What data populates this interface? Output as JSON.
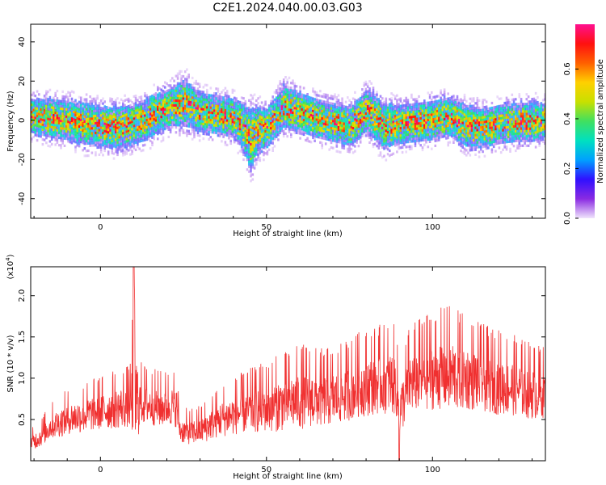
{
  "title": "C2E1.2024.040.00.03.G03",
  "chart_data": [
    {
      "type": "heatmap",
      "xlabel": "Height of straight line (km)",
      "ylabel": "Frequency (Hz)",
      "xlim": [
        -21,
        134
      ],
      "ylim": [
        -50,
        49
      ],
      "xticks": [
        0,
        50,
        100
      ],
      "yticks": [
        -40,
        -20,
        0,
        20,
        40
      ],
      "colorbar": {
        "label": "Normalized spectral amplitude",
        "range": [
          0.0,
          0.78
        ],
        "ticks": [
          0.0,
          0.2,
          0.4,
          0.6
        ],
        "colormap": [
          "#f0e4fc",
          "#8a2be2",
          "#3010ff",
          "#00a0ff",
          "#00e0c0",
          "#40e060",
          "#c8e000",
          "#ffd000",
          "#ff6000",
          "#ff1010",
          "#ff1090"
        ]
      },
      "band": {
        "x": [
          -21,
          -15,
          -10,
          -5,
          0,
          5,
          10,
          15,
          20,
          25,
          30,
          35,
          40,
          43,
          45,
          47,
          50,
          55,
          60,
          65,
          70,
          75,
          80,
          85,
          90,
          95,
          100,
          105,
          110,
          115,
          120,
          125,
          130,
          134
        ],
        "center_hz": [
          2,
          1,
          0,
          -2,
          -3,
          -4,
          -2,
          2,
          6,
          9,
          4,
          3,
          1,
          -4,
          -10,
          -5,
          -4,
          7,
          4,
          1,
          -1,
          -3,
          5,
          -3,
          -2,
          -1,
          0,
          2,
          -3,
          -4,
          -2,
          -1,
          -1,
          0
        ],
        "halfwidth_hz": [
          9,
          10,
          10,
          11,
          10,
          11,
          10,
          11,
          10,
          12,
          10,
          10,
          10,
          12,
          16,
          12,
          10,
          11,
          10,
          10,
          10,
          10,
          11,
          12,
          10,
          10,
          10,
          10,
          11,
          10,
          10,
          10,
          10,
          9
        ]
      }
    },
    {
      "type": "line",
      "xlabel": "Height of straight line (km)",
      "ylabel": "SNR (10 * v/v)",
      "multiplier": "(x10",
      "multiplier_exp": "4",
      "multiplier_close": ")",
      "xlim": [
        -21,
        134
      ],
      "ylim": [
        0.0,
        2.35
      ],
      "xticks": [
        0,
        50,
        100
      ],
      "yticks": [
        0.5,
        1.0,
        1.5,
        2.0
      ],
      "series_color": "#f03030",
      "x": [
        -21,
        -18,
        -15,
        -12,
        -9,
        -6,
        -3,
        0,
        3,
        6,
        9,
        10,
        12,
        15,
        18,
        21,
        23,
        24,
        27,
        30,
        33,
        36,
        39,
        42,
        45,
        48,
        51,
        54,
        57,
        60,
        63,
        66,
        69,
        72,
        75,
        78,
        81,
        84,
        87,
        89,
        90,
        93,
        96,
        99,
        102,
        105,
        108,
        111,
        114,
        117,
        120,
        123,
        126,
        129,
        132,
        134
      ],
      "baseline": [
        0.2,
        0.28,
        0.4,
        0.45,
        0.5,
        0.52,
        0.55,
        0.58,
        0.6,
        0.62,
        0.64,
        0.66,
        0.68,
        0.65,
        0.62,
        0.64,
        0.62,
        0.35,
        0.33,
        0.35,
        0.42,
        0.48,
        0.52,
        0.55,
        0.58,
        0.6,
        0.62,
        0.65,
        0.68,
        0.7,
        0.72,
        0.7,
        0.72,
        0.74,
        0.8,
        0.85,
        0.88,
        0.9,
        0.92,
        0.88,
        0.55,
        0.9,
        0.95,
        0.98,
        1.0,
        1.0,
        0.98,
        0.96,
        0.94,
        0.9,
        0.88,
        0.86,
        0.84,
        0.8,
        0.78,
        0.8
      ],
      "spread": [
        0.15,
        0.2,
        0.25,
        0.3,
        0.32,
        0.34,
        0.36,
        0.38,
        0.4,
        0.42,
        0.45,
        1.4,
        0.45,
        0.4,
        0.4,
        0.4,
        0.4,
        0.25,
        0.25,
        0.28,
        0.32,
        0.36,
        0.4,
        0.42,
        0.45,
        0.48,
        0.5,
        0.55,
        0.55,
        0.6,
        0.58,
        0.55,
        0.55,
        0.55,
        0.58,
        0.6,
        0.62,
        0.62,
        0.65,
        0.62,
        0.5,
        0.62,
        0.65,
        0.68,
        0.7,
        0.75,
        0.7,
        0.65,
        0.62,
        0.6,
        0.6,
        0.58,
        0.55,
        0.55,
        0.52,
        0.5
      ]
    }
  ]
}
